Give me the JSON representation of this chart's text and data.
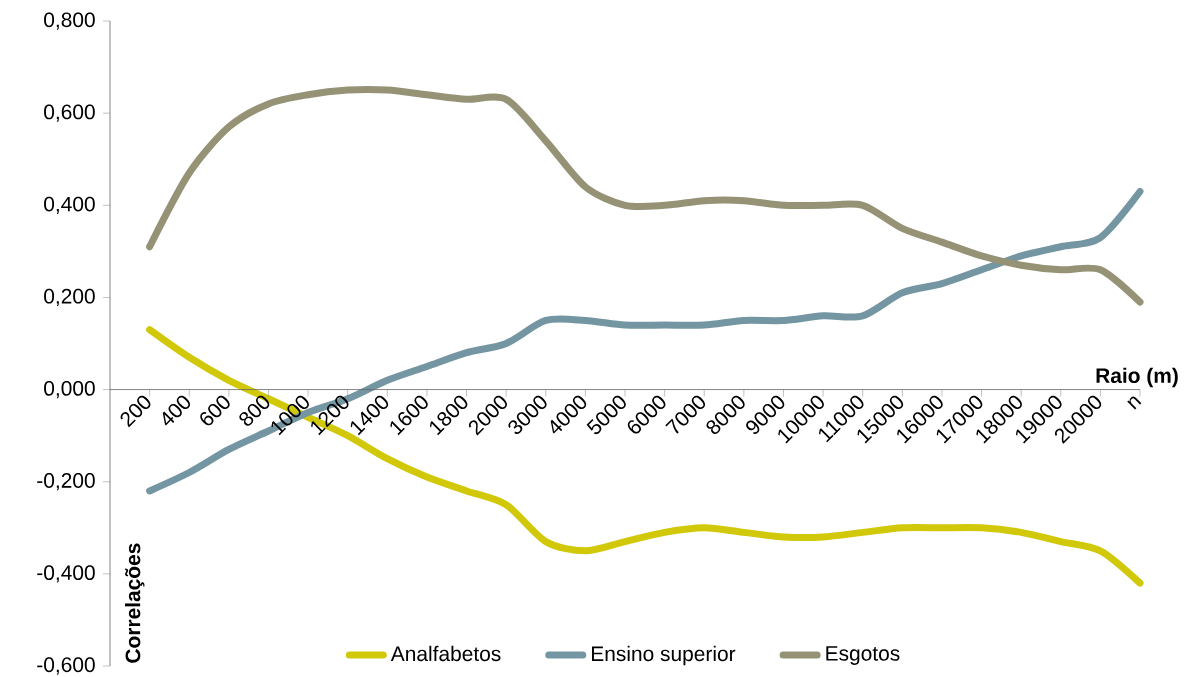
{
  "chart_data": {
    "type": "line",
    "categories": [
      "200",
      "400",
      "600",
      "800",
      "1000",
      "1200",
      "1400",
      "1600",
      "1800",
      "2000",
      "3000",
      "4000",
      "5000",
      "6000",
      "7000",
      "8000",
      "9000",
      "10000",
      "11000",
      "15000",
      "16000",
      "17000",
      "18000",
      "19000",
      "20000",
      "n"
    ],
    "series": [
      {
        "name": "Analfabetos",
        "color": "#d2c80a",
        "values": [
          0.13,
          0.07,
          0.02,
          -0.02,
          -0.06,
          -0.1,
          -0.15,
          -0.19,
          -0.22,
          -0.25,
          -0.33,
          -0.35,
          -0.33,
          -0.31,
          -0.3,
          -0.31,
          -0.32,
          -0.32,
          -0.31,
          -0.3,
          -0.3,
          -0.3,
          -0.31,
          -0.33,
          -0.35,
          -0.42
        ]
      },
      {
        "name": "Ensino superior",
        "color": "#7396a2",
        "values": [
          -0.22,
          -0.18,
          -0.13,
          -0.09,
          -0.05,
          -0.02,
          0.02,
          0.05,
          0.08,
          0.1,
          0.15,
          0.15,
          0.14,
          0.14,
          0.14,
          0.15,
          0.15,
          0.16,
          0.16,
          0.21,
          0.23,
          0.26,
          0.29,
          0.31,
          0.33,
          0.43
        ]
      },
      {
        "name": "Esgotos",
        "color": "#959276",
        "values": [
          0.31,
          0.47,
          0.57,
          0.62,
          0.64,
          0.65,
          0.65,
          0.64,
          0.63,
          0.63,
          0.54,
          0.44,
          0.4,
          0.4,
          0.41,
          0.41,
          0.4,
          0.4,
          0.4,
          0.35,
          0.32,
          0.29,
          0.27,
          0.26,
          0.26,
          0.19
        ]
      }
    ],
    "ylim": [
      -0.6,
      0.8
    ],
    "yticks": [
      {
        "value": -0.6,
        "label": "-0,600"
      },
      {
        "value": -0.4,
        "label": "-0,400"
      },
      {
        "value": -0.2,
        "label": "-0,200"
      },
      {
        "value": 0,
        "label": "0,000"
      },
      {
        "value": 0.2,
        "label": "0,200"
      },
      {
        "value": 0.4,
        "label": "0,400"
      },
      {
        "value": 0.6,
        "label": "0,600"
      },
      {
        "value": 0.8,
        "label": "0,800"
      }
    ],
    "xlabel": "Raio (m)",
    "ylabel": "Correlações",
    "legend": "bottom"
  }
}
